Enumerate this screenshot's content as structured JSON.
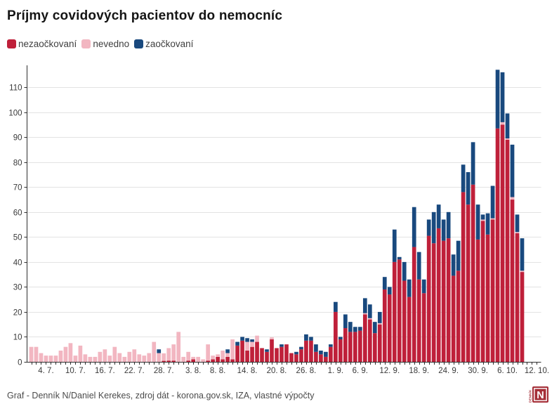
{
  "title": "Príjmy covidových pacientov do nemocníc",
  "footer": "Graf - Denník N/Daniel Kerekes, zdroj dát - korona.gov.sk, IZA, vlastné výpočty",
  "logo": {
    "letter": "N",
    "vertical_text": "DENNÍK",
    "color": "#a52f38"
  },
  "chart_data": {
    "type": "bar",
    "stacked": true,
    "n_bars": 104,
    "grid": true,
    "legend_position": "top-left",
    "ylim": [
      0,
      117
    ],
    "yticks": [
      0,
      10,
      20,
      30,
      40,
      50,
      60,
      70,
      80,
      90,
      100,
      110
    ],
    "xticks": [
      {
        "label": "4. 7.",
        "index": 3
      },
      {
        "label": "10. 7.",
        "index": 9
      },
      {
        "label": "16. 7.",
        "index": 15
      },
      {
        "label": "22. 7.",
        "index": 21
      },
      {
        "label": "28. 7.",
        "index": 27
      },
      {
        "label": "3. 8.",
        "index": 33
      },
      {
        "label": "8. 8.",
        "index": 38
      },
      {
        "label": "14. 8.",
        "index": 44
      },
      {
        "label": "20. 8.",
        "index": 50
      },
      {
        "label": "26. 8.",
        "index": 56
      },
      {
        "label": "1. 9.",
        "index": 62
      },
      {
        "label": "6. 9.",
        "index": 67
      },
      {
        "label": "12. 9.",
        "index": 73
      },
      {
        "label": "18. 9.",
        "index": 79
      },
      {
        "label": "24. 9.",
        "index": 85
      },
      {
        "label": "30. 9.",
        "index": 91
      },
      {
        "label": "6. 10.",
        "index": 97
      },
      {
        "label": "12. 10.",
        "index": 103
      }
    ],
    "series": [
      {
        "name": "nezaočkovaní",
        "color": "#bf203a",
        "values": [
          0,
          0,
          0,
          0,
          0,
          0,
          0,
          0,
          0,
          0,
          0,
          0,
          0,
          0,
          0,
          0,
          0,
          0,
          0,
          0,
          0,
          0,
          0,
          0,
          0,
          0,
          0,
          0.4,
          0.5,
          0.5,
          0,
          0,
          0.5,
          1,
          0,
          0,
          0.5,
          1,
          2,
          1,
          2,
          1,
          6.5,
          8.5,
          4.5,
          6,
          8,
          5.5,
          4,
          9,
          5.5,
          6,
          7,
          3.5,
          3,
          5,
          8.5,
          8.5,
          4,
          3,
          2,
          6,
          20,
          9,
          13.5,
          12,
          12,
          12.5,
          19,
          17,
          11.5,
          15,
          29,
          27,
          40,
          41,
          32.5,
          26,
          46,
          33,
          27.5,
          50.5,
          47.5,
          53.5,
          48.5,
          49.5,
          34.5,
          36.5,
          68,
          63,
          71,
          49,
          56.5,
          51,
          57,
          93.5,
          95,
          89,
          65,
          51.5,
          36,
          0,
          0,
          0
        ]
      },
      {
        "name": "nevedno",
        "color": "#f2b6c1",
        "values": [
          6,
          6,
          3.5,
          2.5,
          2.5,
          2.5,
          4.5,
          6,
          7.5,
          2.5,
          6.5,
          3,
          2,
          2,
          4,
          5,
          2.5,
          6,
          3.5,
          2,
          4,
          5,
          3,
          2.5,
          3.5,
          8,
          3.5,
          3,
          5,
          6.5,
          12,
          2,
          3.5,
          1,
          2,
          1,
          6.5,
          1.5,
          1,
          3.5,
          1.5,
          8,
          0,
          0,
          3.5,
          2,
          2.5,
          0,
          0,
          0.8,
          0,
          0,
          0,
          0,
          0,
          0,
          0,
          0,
          0,
          0,
          0,
          0,
          0,
          0,
          0,
          0,
          0,
          0,
          0.5,
          0.5,
          0,
          0.5,
          0,
          0,
          0,
          0,
          0,
          0,
          0,
          0,
          0,
          0,
          0,
          0,
          0,
          0,
          0,
          0,
          0,
          0,
          0,
          0,
          0.5,
          0,
          0.5,
          0,
          1,
          0.5,
          1,
          0.5,
          0.5,
          0,
          0,
          0
        ]
      },
      {
        "name": "zaočkovaní",
        "color": "#19497e",
        "values": [
          0,
          0,
          0,
          0,
          0,
          0,
          0,
          0,
          0,
          0,
          0,
          0,
          0,
          0,
          0,
          0,
          0,
          0,
          0,
          0,
          0,
          0,
          0,
          0,
          0,
          0,
          1.5,
          0,
          0,
          0,
          0,
          0,
          0,
          0,
          0,
          0,
          0,
          0,
          0,
          0,
          1.5,
          0,
          1.5,
          1.5,
          1.5,
          1,
          0,
          0,
          1,
          0,
          0,
          1,
          0,
          0,
          1,
          1,
          2.5,
          1.5,
          3,
          1.5,
          2,
          1,
          4,
          1,
          5.5,
          4,
          2,
          1.5,
          6,
          5.5,
          4.5,
          4.5,
          5,
          3,
          13,
          1,
          7.5,
          7,
          16,
          11,
          5.5,
          6.5,
          12.5,
          9.5,
          8.5,
          10.5,
          8.5,
          12,
          11,
          13,
          17,
          14,
          2,
          8.5,
          13,
          23.5,
          20,
          10,
          21,
          7,
          13,
          0,
          0,
          0
        ]
      }
    ]
  }
}
